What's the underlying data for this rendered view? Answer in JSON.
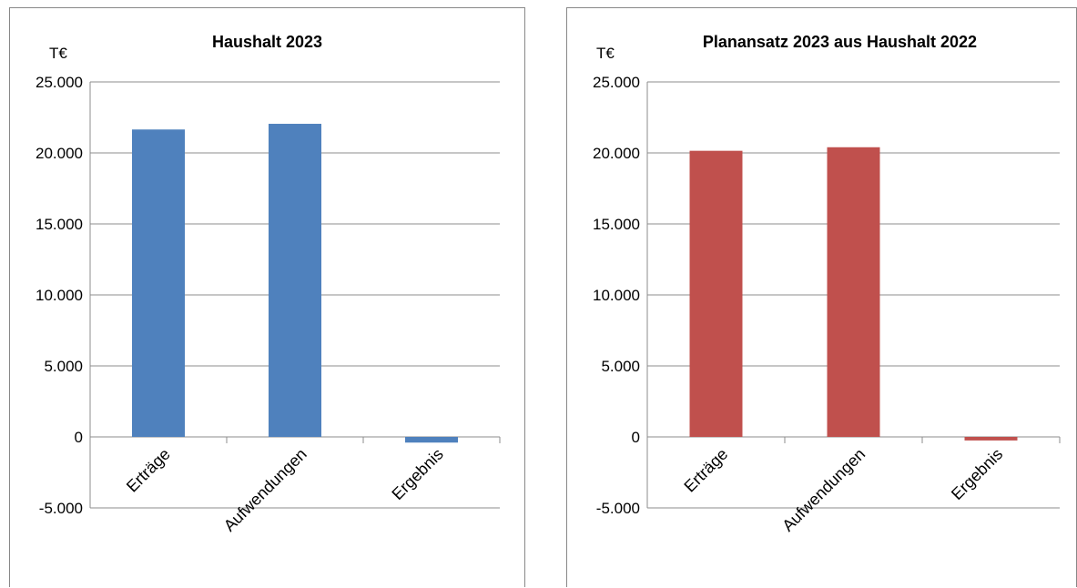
{
  "chart_data": [
    {
      "type": "bar",
      "title": "Haushalt 2023",
      "ylabel": "T€",
      "categories": [
        "Erträge",
        "Aufwendungen",
        "Ergebnis"
      ],
      "values": [
        21650,
        22050,
        -400
      ],
      "ylim": [
        -5000,
        25000
      ],
      "yticks": [
        25000,
        20000,
        15000,
        10000,
        5000,
        0,
        -5000
      ],
      "ytick_labels": [
        "25.000",
        "20.000",
        "15.000",
        "10.000",
        "5.000",
        "0",
        "-5.000"
      ],
      "grid": true,
      "color": "#4f81bd"
    },
    {
      "type": "bar",
      "title": "Planansatz 2023 aus Haushalt 2022",
      "ylabel": "T€",
      "categories": [
        "Erträge",
        "Aufwendungen",
        "Ergebnis"
      ],
      "values": [
        20150,
        20400,
        -250
      ],
      "ylim": [
        -5000,
        25000
      ],
      "yticks": [
        25000,
        20000,
        15000,
        10000,
        5000,
        0,
        -5000
      ],
      "ytick_labels": [
        "25.000",
        "20.000",
        "15.000",
        "10.000",
        "5.000",
        "0",
        "-5.000"
      ],
      "grid": true,
      "color": "#c0504d"
    }
  ]
}
